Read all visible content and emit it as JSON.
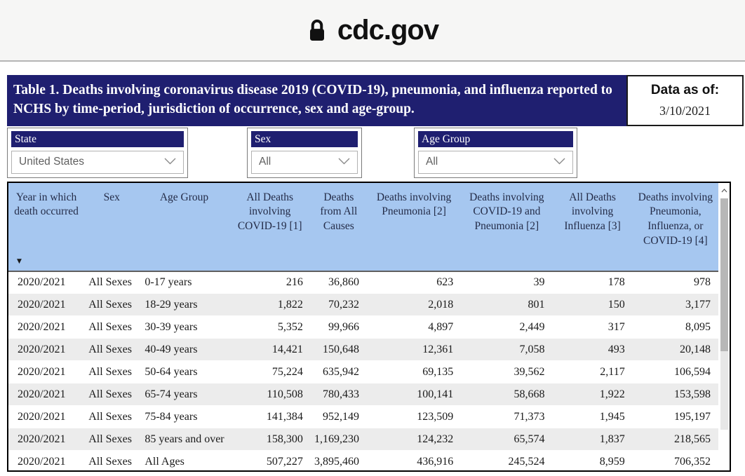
{
  "browser": {
    "site": "cdc.gov"
  },
  "banner": {
    "title": "Table 1. Deaths involving coronavirus disease 2019 (COVID-19), pneumonia, and influenza reported to NCHS by time-period, jurisdiction of occurrence, sex and age-group.",
    "data_as_of_label": "Data as of:",
    "data_as_of_value": "3/10/2021"
  },
  "filters": [
    {
      "label": "State",
      "value": "United States"
    },
    {
      "label": "Sex",
      "value": "All"
    },
    {
      "label": "Age Group",
      "value": "All"
    }
  ],
  "table": {
    "columns": [
      "Year in which death occurred",
      "Sex",
      "Age Group",
      "All Deaths involving COVID-19 [1]",
      "Deaths from All Causes",
      "Deaths involving Pneumonia [2]",
      "Deaths involving COVID-19 and Pneumonia [2]",
      "All Deaths involving Influenza [3]",
      "Deaths involving Pneumonia, Influenza, or COVID-19 [4]"
    ],
    "rows": [
      [
        "2020/2021",
        "All Sexes",
        "0-17 years",
        "216",
        "36,860",
        "623",
        "39",
        "178",
        "978"
      ],
      [
        "2020/2021",
        "All Sexes",
        "18-29 years",
        "1,822",
        "70,232",
        "2,018",
        "801",
        "150",
        "3,177"
      ],
      [
        "2020/2021",
        "All Sexes",
        "30-39 years",
        "5,352",
        "99,966",
        "4,897",
        "2,449",
        "317",
        "8,095"
      ],
      [
        "2020/2021",
        "All Sexes",
        "40-49 years",
        "14,421",
        "150,648",
        "12,361",
        "7,058",
        "493",
        "20,148"
      ],
      [
        "2020/2021",
        "All Sexes",
        "50-64 years",
        "75,224",
        "635,942",
        "69,135",
        "39,562",
        "2,117",
        "106,594"
      ],
      [
        "2020/2021",
        "All Sexes",
        "65-74 years",
        "110,508",
        "780,433",
        "100,141",
        "58,668",
        "1,922",
        "153,598"
      ],
      [
        "2020/2021",
        "All Sexes",
        "75-84 years",
        "141,384",
        "952,149",
        "123,509",
        "71,373",
        "1,945",
        "195,197"
      ],
      [
        "2020/2021",
        "All Sexes",
        "85 years and over",
        "158,300",
        "1,169,230",
        "124,232",
        "65,574",
        "1,837",
        "218,565"
      ],
      [
        "2020/2021",
        "All Sexes",
        "All Ages",
        "507,227",
        "3,895,460",
        "436,916",
        "245,524",
        "8,959",
        "706,352"
      ]
    ],
    "sort_indicator": "▼"
  },
  "colors": {
    "navy": "#1f1f70",
    "header_blue": "#a6c7f0",
    "row_alt": "#ececec",
    "topbar_bg": "#f6f6f5",
    "table_border": "#000000",
    "text_dark": "#1a1a1a"
  }
}
